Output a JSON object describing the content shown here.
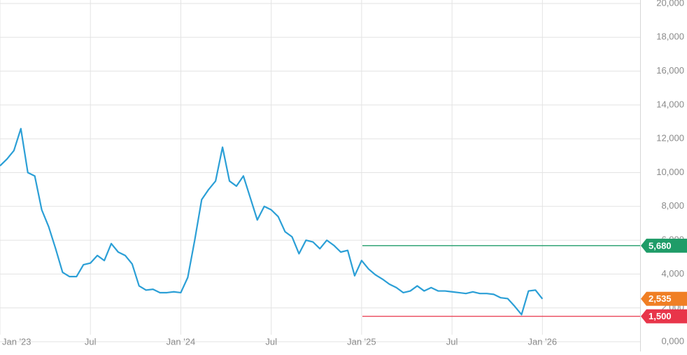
{
  "chart_data": {
    "type": "line",
    "color": "#2b9fd6",
    "categories": [
      "Jan '23",
      null,
      null,
      null,
      null,
      null,
      null,
      null,
      null,
      null,
      null,
      null,
      null,
      "Jul",
      null,
      null,
      null,
      null,
      null,
      null,
      null,
      null,
      null,
      null,
      null,
      null,
      "Jan '24",
      null,
      null,
      null,
      null,
      null,
      null,
      null,
      null,
      null,
      null,
      null,
      null,
      "Jul",
      null,
      null,
      null,
      null,
      null,
      null,
      null,
      null,
      null,
      null,
      null,
      null,
      "Jan '25",
      null,
      null,
      null,
      null,
      null,
      null,
      null,
      null,
      null,
      null,
      null,
      null,
      "Jul",
      null,
      null,
      null,
      null,
      null,
      null,
      null,
      null,
      null,
      null,
      null,
      null,
      "Jan '26"
    ],
    "values": [
      10400,
      10800,
      11300,
      12600,
      10000,
      9800,
      7800,
      6800,
      5500,
      4100,
      3850,
      3850,
      4550,
      4650,
      5100,
      4800,
      5800,
      5300,
      5100,
      4600,
      3300,
      3050,
      3100,
      2900,
      2900,
      2950,
      2900,
      3800,
      6000,
      8400,
      9000,
      9500,
      11500,
      9500,
      9200,
      9800,
      8500,
      7200,
      8000,
      7800,
      7400,
      6500,
      6200,
      5200,
      6000,
      5900,
      5500,
      6000,
      5700,
      5300,
      5400,
      3900,
      4800,
      4300,
      3950,
      3700,
      3400,
      3200,
      2900,
      3000,
      3300,
      3000,
      3200,
      3000,
      3000,
      2950,
      2900,
      2850,
      2950,
      2850,
      2850,
      2800,
      2600,
      2550,
      2100,
      1600,
      3000,
      3050,
      2535
    ],
    "ylim": [
      0,
      20000
    ],
    "yticks": [
      {
        "value": 0,
        "label": "0,000"
      },
      {
        "value": 2000,
        "label": "2,000"
      },
      {
        "value": 4000,
        "label": "4,000"
      },
      {
        "value": 6000,
        "label": "6,000"
      },
      {
        "value": 8000,
        "label": "8,000"
      },
      {
        "value": 10000,
        "label": "10,000"
      },
      {
        "value": 12000,
        "label": "12,000"
      },
      {
        "value": 14000,
        "label": "14,000"
      },
      {
        "value": 16000,
        "label": "16,000"
      },
      {
        "value": 18000,
        "label": "18,000"
      },
      {
        "value": 20000,
        "label": "20,000"
      }
    ],
    "grid": true,
    "markers": [
      {
        "value": 5680,
        "label": "5,680",
        "color": "#1f9c68",
        "line": true
      },
      {
        "value": 2535,
        "label": "2,535",
        "color": "#f07f24",
        "line": false
      },
      {
        "value": 1500,
        "label": "1,500",
        "color": "#e8354a",
        "line": true
      }
    ]
  }
}
